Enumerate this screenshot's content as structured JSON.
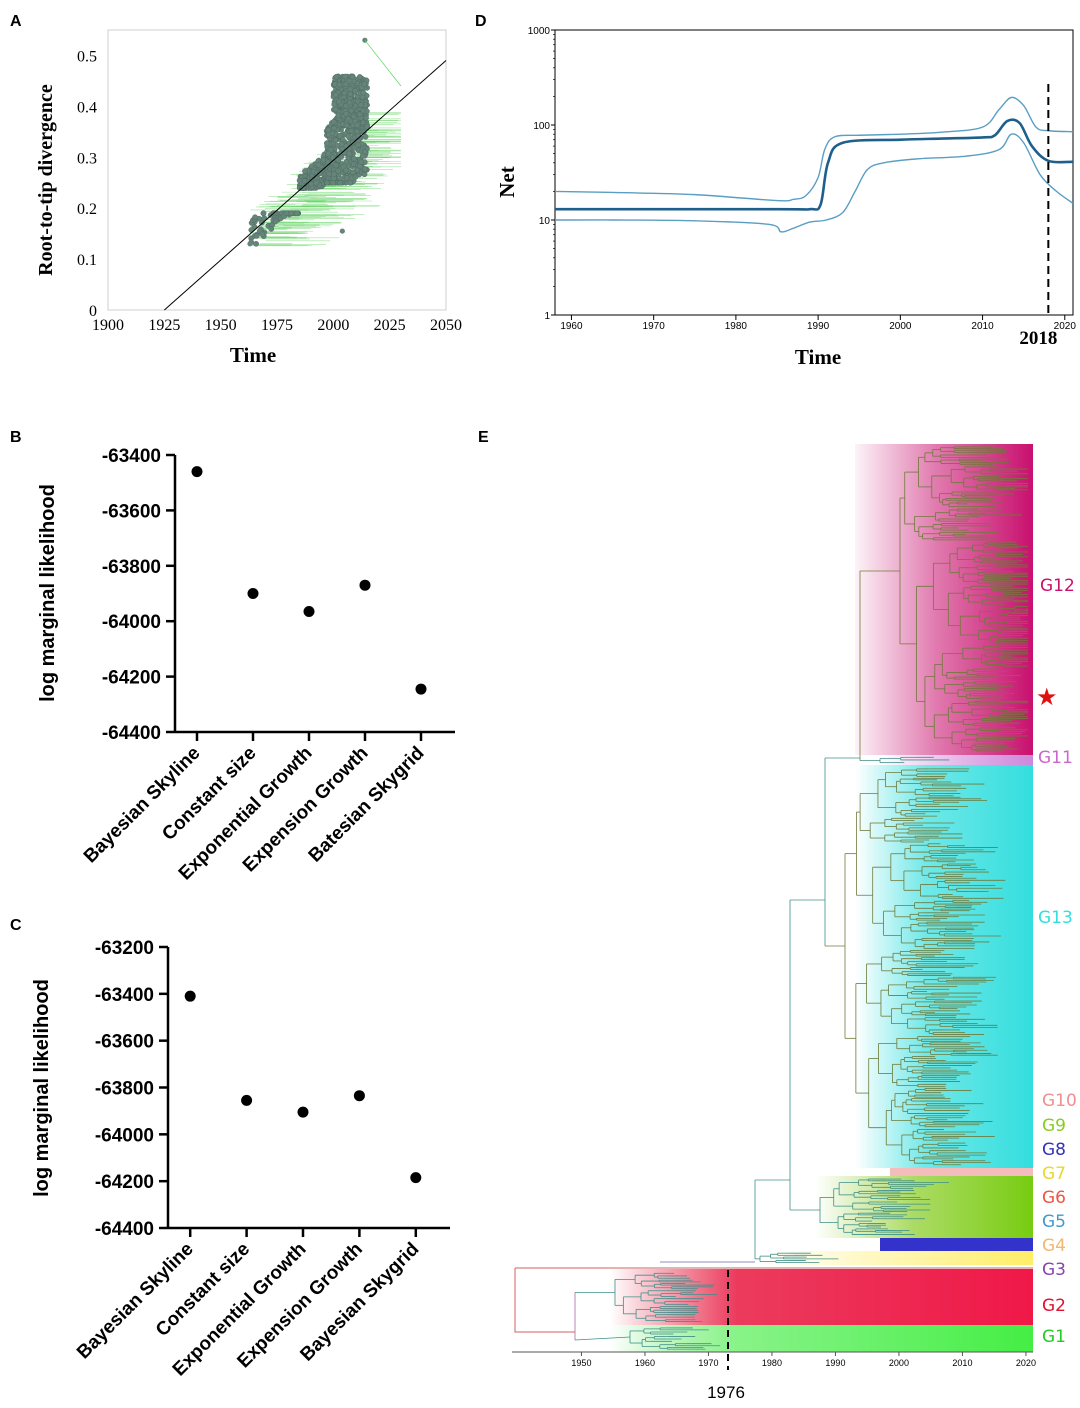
{
  "chart_data": [
    {
      "panel": "A",
      "type": "scatter",
      "xlabel": "Time",
      "ylabel": "Root-to-tip divergence",
      "xlim": [
        1900,
        2050
      ],
      "ylim": [
        0,
        0.55
      ],
      "xticks": [
        "1900",
        "1925",
        "1950",
        "1975",
        "2000",
        "2025",
        "2050"
      ],
      "yticks": [
        "0",
        "0.1",
        "0.2",
        "0.3",
        "0.4",
        "0.5"
      ],
      "regression": {
        "x": [
          1925,
          2050
        ],
        "y": [
          0,
          0.49
        ]
      },
      "outliers": [
        {
          "x": 2014,
          "y": 0.53
        },
        {
          "x": 2004,
          "y": 0.155
        },
        {
          "x": 1963,
          "y": 0.13
        }
      ],
      "clusters": [
        {
          "x_range": [
            1963,
            1985
          ],
          "y_range": [
            0.13,
            0.19
          ]
        },
        {
          "x_range": [
            1985,
            2000
          ],
          "y_range": [
            0.24,
            0.33
          ]
        },
        {
          "x_range": [
            1997,
            2015
          ],
          "y_range": [
            0.25,
            0.46
          ]
        }
      ]
    },
    {
      "panel": "B",
      "type": "scatter",
      "ylabel": "log marginal likelihood",
      "ylim": [
        -64400,
        -63400
      ],
      "yticks": [
        "-63400",
        "-63600",
        "-63800",
        "-64000",
        "-64200",
        "-64400"
      ],
      "categories": [
        "Bayesian Skyline",
        "Constant size",
        "Exponential Growth",
        "Expension Growth",
        "Batesian Skygrid"
      ],
      "values": [
        -63460,
        -63900,
        -63965,
        -63870,
        -64245
      ]
    },
    {
      "panel": "C",
      "type": "scatter",
      "ylabel": "log marginal likelihood",
      "ylim": [
        -64400,
        -63200
      ],
      "yticks": [
        "-63200",
        "-63400",
        "-63600",
        "-63800",
        "-64000",
        "-64200",
        "-64400"
      ],
      "categories": [
        "Bayesian Skyline",
        "Constant size",
        "Exponential Growth",
        "Expension Growth",
        "Bayesian Skygrid"
      ],
      "values": [
        -63410,
        -63855,
        -63905,
        -63835,
        -64185
      ]
    },
    {
      "panel": "D",
      "type": "line",
      "xlabel": "Time",
      "ylabel": "Net",
      "yscale": "log",
      "xlim": [
        1958,
        2021
      ],
      "ylim": [
        1,
        1000
      ],
      "xticks": [
        "1960",
        "1970",
        "1980",
        "1990",
        "2000",
        "2010",
        "2020"
      ],
      "yticks": [
        "1",
        "10",
        "100",
        "1000"
      ],
      "marker_label": "2018",
      "marker_x": 2018,
      "series": [
        {
          "name": "median",
          "x": [
            1958,
            1985,
            1989,
            1990.3,
            1991.2,
            1993,
            2000,
            2005,
            2010,
            2011.5,
            2013,
            2014.5,
            2016,
            2018,
            2021
          ],
          "y": [
            13,
            13,
            13,
            14.5,
            40,
            65,
            70,
            72,
            74,
            78,
            110,
            105,
            60,
            42,
            41
          ]
        },
        {
          "name": "upper",
          "x": [
            1958,
            1965,
            1975,
            1985,
            1987,
            1988.5,
            1990,
            1990.8,
            1992,
            1995,
            2000,
            2005,
            2010,
            2012,
            2013.5,
            2015,
            2016.5,
            2018,
            2021
          ],
          "y": [
            20,
            19.5,
            18.5,
            16,
            16.5,
            18,
            28,
            55,
            75,
            78,
            80,
            84,
            95,
            145,
            195,
            160,
            95,
            87,
            85
          ]
        },
        {
          "name": "lower",
          "x": [
            1958,
            1965,
            1975,
            1984,
            1985.5,
            1987,
            1989,
            1991,
            1993,
            1994.5,
            1996,
            1998,
            2002,
            2008,
            2012,
            2013.5,
            2015,
            2017,
            2019,
            2021
          ],
          "y": [
            10,
            10,
            9.8,
            9,
            7.5,
            8.2,
            9.5,
            10,
            12,
            20,
            34,
            40,
            44,
            47,
            55,
            80,
            65,
            30,
            20,
            15
          ]
        }
      ]
    },
    {
      "panel": "E",
      "type": "tree",
      "xlim": [
        1943,
        2023
      ],
      "xticks": [
        "1950",
        "1960",
        "1970",
        "1980",
        "1990",
        "2000",
        "2010",
        "2020"
      ],
      "marker_label": "1976",
      "marker_x": 1976,
      "star": "★",
      "clades": [
        {
          "name": "G12",
          "color": "#c8106e"
        },
        {
          "name": "G11",
          "color": "#cc66cc"
        },
        {
          "name": "G13",
          "color": "#33dede"
        },
        {
          "name": "G10",
          "color": "#f08f8f"
        },
        {
          "name": "G9",
          "color": "#88cc22"
        },
        {
          "name": "G8",
          "color": "#3333bb"
        },
        {
          "name": "G7",
          "color": "#e8d82c"
        },
        {
          "name": "G6",
          "color": "#ee5544"
        },
        {
          "name": "G5",
          "color": "#4499cc"
        },
        {
          "name": "G4",
          "color": "#f0b870"
        },
        {
          "name": "G3",
          "color": "#8844aa"
        },
        {
          "name": "G2",
          "color": "#e01030"
        },
        {
          "name": "G1",
          "color": "#22cc22"
        }
      ]
    }
  ],
  "panels": {
    "a": "A",
    "b": "B",
    "c": "C",
    "d": "D",
    "e": "E"
  }
}
